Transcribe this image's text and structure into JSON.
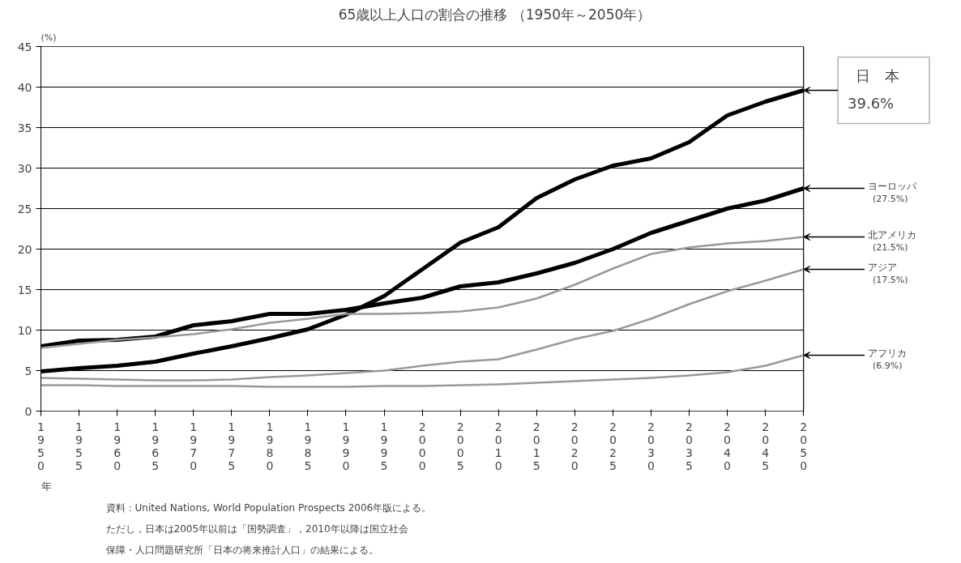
{
  "chart_data": {
    "type": "line",
    "title": "65歳以上人口の割合の推移 （1950年～2050年）",
    "ylabel": "(%)",
    "xlabel": "年",
    "x": [
      1950,
      1955,
      1960,
      1965,
      1970,
      1975,
      1980,
      1985,
      1990,
      1995,
      2000,
      2005,
      2010,
      2015,
      2020,
      2025,
      2030,
      2035,
      2040,
      2045,
      2050
    ],
    "xlim": [
      1950,
      2050
    ],
    "xticks": [
      1950,
      1955,
      1960,
      1965,
      1970,
      1975,
      1980,
      1985,
      1990,
      1995,
      2000,
      2005,
      2010,
      2015,
      2020,
      2025,
      2030,
      2035,
      2040,
      2045,
      2050
    ],
    "ylim": [
      0,
      45
    ],
    "yticks": [
      0,
      5,
      10,
      15,
      20,
      25,
      30,
      35,
      40,
      45
    ],
    "grid": "y",
    "series": [
      {
        "name": "日　本",
        "color": "#000000",
        "values": [
          4.9,
          5.3,
          5.6,
          6.1,
          7.1,
          8.0,
          9.0,
          10.1,
          11.9,
          14.2,
          17.5,
          20.8,
          22.7,
          26.3,
          28.6,
          30.3,
          31.2,
          33.2,
          36.5,
          38.2,
          39.6
        ],
        "value_labels": [
          null,
          null,
          null,
          null,
          null,
          null,
          null,
          null,
          null,
          null,
          null,
          null,
          null,
          null,
          null,
          null,
          null,
          null,
          null,
          null,
          "39.6%"
        ]
      },
      {
        "name": "ヨーロッパ",
        "color": "#000000",
        "values": [
          8.0,
          8.7,
          8.8,
          9.2,
          10.6,
          11.1,
          12.0,
          12.0,
          12.5,
          13.3,
          14.0,
          15.4,
          15.9,
          17.0,
          18.3,
          20.0,
          22.0,
          23.5,
          25.0,
          26.0,
          27.5
        ],
        "value_labels": [
          null,
          null,
          null,
          null,
          null,
          null,
          null,
          null,
          null,
          null,
          null,
          null,
          null,
          null,
          null,
          null,
          null,
          null,
          null,
          null,
          "(27.5%)"
        ]
      },
      {
        "name": "北アメリカ",
        "color": "#999999",
        "values": [
          7.8,
          8.3,
          8.8,
          9.1,
          9.5,
          10.1,
          10.9,
          11.4,
          12.0,
          12.0,
          12.1,
          12.3,
          12.8,
          13.9,
          15.6,
          17.6,
          19.4,
          20.2,
          20.7,
          21.0,
          21.5
        ],
        "value_labels": [
          null,
          null,
          null,
          null,
          null,
          null,
          null,
          null,
          null,
          null,
          null,
          null,
          null,
          null,
          null,
          null,
          null,
          null,
          null,
          null,
          "(21.5%)"
        ]
      },
      {
        "name": "アジア",
        "color": "#999999",
        "values": [
          4.1,
          4.0,
          3.9,
          3.8,
          3.8,
          3.9,
          4.2,
          4.4,
          4.7,
          5.0,
          5.6,
          6.1,
          6.4,
          7.6,
          8.9,
          9.9,
          11.4,
          13.2,
          14.8,
          16.1,
          17.5
        ],
        "value_labels": [
          null,
          null,
          null,
          null,
          null,
          null,
          null,
          null,
          null,
          null,
          null,
          null,
          null,
          null,
          null,
          null,
          null,
          null,
          null,
          null,
          "(17.5%)"
        ]
      },
      {
        "name": "アフリカ",
        "color": "#999999",
        "values": [
          3.2,
          3.2,
          3.1,
          3.1,
          3.1,
          3.1,
          3.0,
          3.0,
          3.0,
          3.1,
          3.1,
          3.2,
          3.3,
          3.5,
          3.7,
          3.9,
          4.1,
          4.4,
          4.8,
          5.6,
          6.9
        ],
        "value_labels": [
          null,
          null,
          null,
          null,
          null,
          null,
          null,
          null,
          null,
          null,
          null,
          null,
          null,
          null,
          null,
          null,
          null,
          null,
          null,
          null,
          "(6.9%)"
        ]
      }
    ],
    "annotations": [
      "資料：United Nations, World Population Prospects 2006年版による。",
      "ただし，日本は2005年以前は「国勢調査」，2010年以降は国立社会",
      "保障・人口問題研究所「日本の将来推計人口」の結果による。"
    ]
  }
}
